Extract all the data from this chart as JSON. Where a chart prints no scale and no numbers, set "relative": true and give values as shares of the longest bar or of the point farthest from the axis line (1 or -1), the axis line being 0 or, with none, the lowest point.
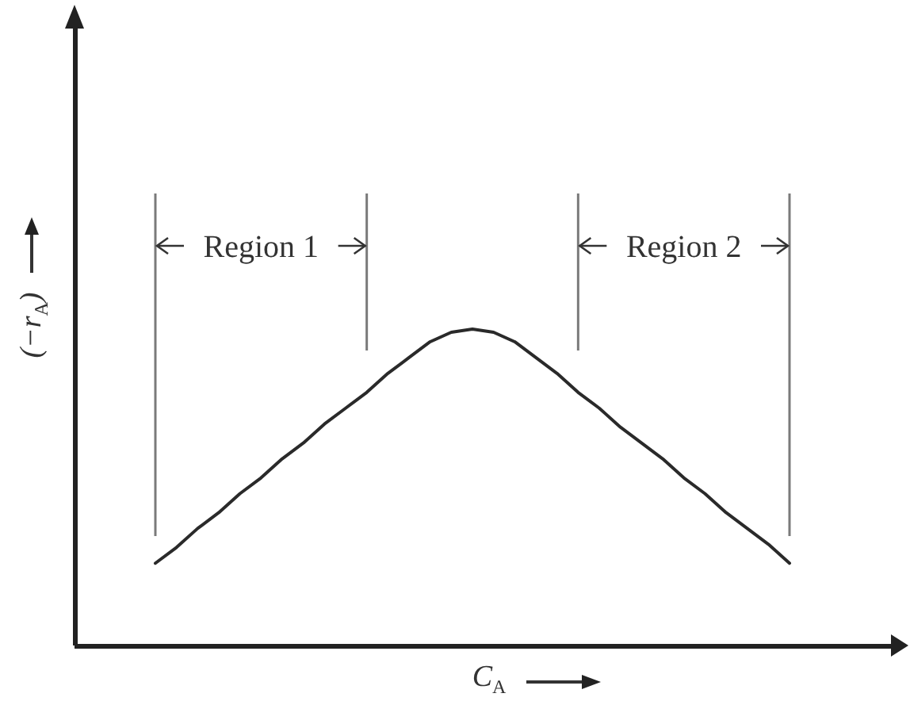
{
  "chart_data": {
    "type": "line",
    "xlabel": "C$_{A}$",
    "ylabel": "(−r$_{A}$)",
    "relative": true,
    "categories": [
      null,
      null,
      null,
      null,
      null,
      null,
      null,
      null,
      null,
      null,
      null,
      null,
      null,
      null,
      null,
      null,
      null,
      null,
      null,
      null,
      null,
      null,
      null,
      null,
      null,
      null,
      null,
      null,
      null,
      null,
      null
    ],
    "values": [
      0.26,
      0.31,
      0.37,
      0.42,
      0.48,
      0.53,
      0.59,
      0.64,
      0.7,
      0.75,
      0.8,
      0.86,
      0.91,
      0.96,
      0.99,
      1,
      0.99,
      0.96,
      0.91,
      0.86,
      0.8,
      0.75,
      0.69,
      0.64,
      0.59,
      0.53,
      0.48,
      0.42,
      0.37,
      0.32,
      0.26
    ],
    "color": "#2a2a2a",
    "marker": "none",
    "annotations": [
      "Region 1",
      "Region 2"
    ]
  }
}
